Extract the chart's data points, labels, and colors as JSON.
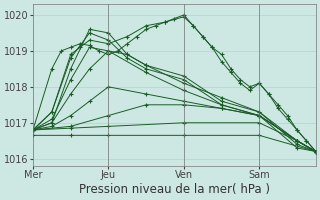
{
  "bg_color": "#cde8e2",
  "grid_color": "#a8cfc8",
  "line_color": "#1a5c28",
  "marker_color": "#1a5c28",
  "xlabel": "Pression niveau de la mer( hPa )",
  "xlabel_fontsize": 8.5,
  "tick_fontsize": 7,
  "ylim": [
    1015.8,
    1020.3
  ],
  "yticks": [
    1016,
    1017,
    1018,
    1019,
    1020
  ],
  "xtick_labels": [
    "Mer",
    "Jeu",
    "Ven",
    "Sam"
  ],
  "xtick_positions": [
    0,
    8,
    16,
    24
  ],
  "xlim": [
    0,
    30
  ],
  "series": [
    {
      "x": [
        0,
        2,
        4,
        6,
        8,
        10,
        12,
        16,
        20,
        24,
        28,
        30
      ],
      "y": [
        1016.8,
        1017.3,
        1018.8,
        1019.5,
        1019.3,
        1018.8,
        1018.5,
        1018.2,
        1017.5,
        1017.2,
        1016.3,
        1016.2
      ]
    },
    {
      "x": [
        0,
        2,
        4,
        6,
        8,
        10,
        12,
        16,
        20,
        24,
        28,
        30
      ],
      "y": [
        1016.8,
        1017.0,
        1018.5,
        1019.6,
        1019.5,
        1018.9,
        1018.6,
        1018.3,
        1017.6,
        1017.3,
        1016.4,
        1016.2
      ]
    },
    {
      "x": [
        0,
        2,
        4,
        6,
        10,
        12,
        16,
        20,
        24,
        28,
        30
      ],
      "y": [
        1016.8,
        1017.1,
        1018.2,
        1019.1,
        1018.9,
        1018.6,
        1018.1,
        1017.7,
        1017.3,
        1016.5,
        1016.2
      ]
    },
    {
      "x": [
        0,
        2,
        4,
        6,
        8,
        12,
        16,
        20,
        24,
        28,
        30
      ],
      "y": [
        1016.8,
        1017.0,
        1017.8,
        1018.5,
        1019.0,
        1018.4,
        1017.9,
        1017.5,
        1017.2,
        1016.5,
        1016.2
      ]
    },
    {
      "x": [
        0,
        2,
        4,
        6,
        8,
        12,
        16,
        20,
        24,
        28,
        30
      ],
      "y": [
        1016.8,
        1016.9,
        1017.2,
        1017.6,
        1018.0,
        1017.8,
        1017.6,
        1017.4,
        1017.2,
        1016.5,
        1016.2
      ]
    },
    {
      "x": [
        0,
        4,
        8,
        12,
        16,
        20,
        24,
        28,
        30
      ],
      "y": [
        1016.8,
        1016.9,
        1017.2,
        1017.5,
        1017.5,
        1017.4,
        1017.2,
        1016.5,
        1016.2
      ]
    },
    {
      "x": [
        0,
        4,
        8,
        16,
        24,
        28,
        30
      ],
      "y": [
        1016.8,
        1016.85,
        1016.9,
        1017.0,
        1017.0,
        1016.5,
        1016.2
      ]
    },
    {
      "x": [
        0,
        4,
        8,
        16,
        24,
        30
      ],
      "y": [
        1016.65,
        1016.65,
        1016.65,
        1016.65,
        1016.65,
        1016.2
      ]
    },
    {
      "x": [
        0,
        2,
        4,
        5,
        6,
        8,
        10,
        12,
        14,
        16,
        17,
        18,
        19,
        20,
        21,
        22,
        23,
        24,
        25,
        26,
        27,
        28,
        29,
        30
      ],
      "y": [
        1016.8,
        1017.3,
        1018.9,
        1019.1,
        1019.3,
        1019.2,
        1019.4,
        1019.7,
        1019.8,
        1019.95,
        1019.7,
        1019.4,
        1019.1,
        1018.9,
        1018.5,
        1018.2,
        1018.0,
        1018.1,
        1017.8,
        1017.5,
        1017.2,
        1016.8,
        1016.5,
        1016.2
      ]
    },
    {
      "x": [
        0,
        2,
        3,
        4,
        5,
        6,
        7,
        8,
        9,
        10,
        11,
        12,
        13,
        14,
        15,
        16,
        17,
        18,
        19,
        20,
        21,
        22,
        23,
        24,
        25,
        26,
        27,
        28,
        29,
        30
      ],
      "y": [
        1016.8,
        1018.5,
        1019.0,
        1019.1,
        1019.2,
        1019.15,
        1019.0,
        1018.9,
        1019.0,
        1019.2,
        1019.4,
        1019.6,
        1019.7,
        1019.8,
        1019.9,
        1020.0,
        1019.7,
        1019.4,
        1019.1,
        1018.7,
        1018.4,
        1018.1,
        1017.9,
        1018.1,
        1017.8,
        1017.4,
        1017.1,
        1016.8,
        1016.5,
        1016.2
      ]
    }
  ]
}
